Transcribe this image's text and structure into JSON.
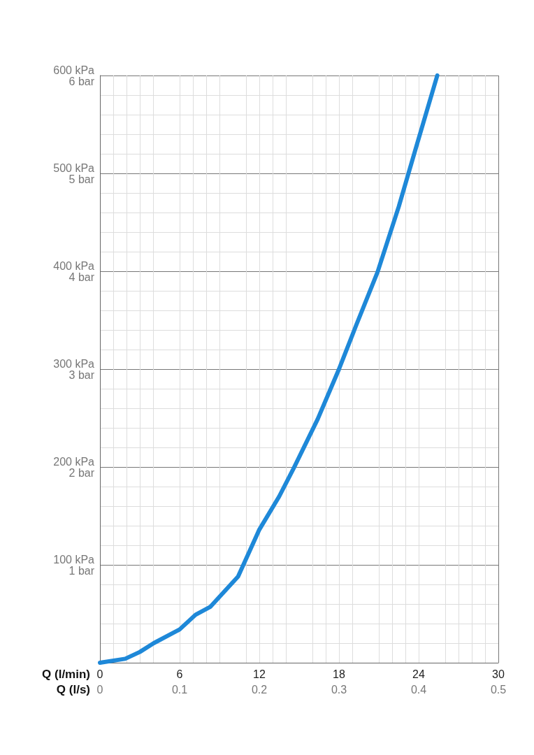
{
  "chart_data": {
    "type": "line",
    "xlabel": "Q (l/min)",
    "x2label": "Q (l/s)",
    "xlim": [
      0,
      30
    ],
    "xticks": [
      0,
      6,
      12,
      18,
      24,
      30
    ],
    "x2lim": [
      0,
      0.5
    ],
    "x2ticks": [
      0,
      0.1,
      0.2,
      0.3,
      0.4,
      0.5
    ],
    "ylim": [
      0,
      600
    ],
    "yticks": [
      {
        "value": 100,
        "label": "100 kPa"
      },
      {
        "value": 200,
        "label": "200 kPa"
      },
      {
        "value": 300,
        "label": "300 kPa"
      },
      {
        "value": 400,
        "label": "400 kPa"
      },
      {
        "value": 500,
        "label": "500 kPa"
      },
      {
        "value": 600,
        "label": "600 kPa"
      }
    ],
    "y2lim": [
      0,
      6
    ],
    "y2ticks": [
      {
        "value": 1,
        "label": "1 bar"
      },
      {
        "value": 2,
        "label": "2 bar"
      },
      {
        "value": 3,
        "label": "3 bar"
      },
      {
        "value": 4,
        "label": "4 bar"
      },
      {
        "value": 5,
        "label": "5 bar"
      },
      {
        "value": 6,
        "label": "6 bar"
      }
    ],
    "grid": true,
    "marker": "none",
    "line_style": "solid",
    "series": [
      {
        "color": "#1e88d8",
        "x": [
          0,
          1.9,
          3,
          4.05,
          6,
          7.2,
          8.3,
          10.4,
          12,
          13.5,
          14.6,
          16.4,
          18,
          19.3,
          20.9,
          22.5,
          23.9,
          25.4
        ],
        "values": [
          0,
          4,
          11,
          20,
          34,
          49,
          57,
          88,
          136,
          170,
          199,
          249,
          300,
          345,
          399,
          466,
          531,
          600
        ]
      }
    ]
  }
}
